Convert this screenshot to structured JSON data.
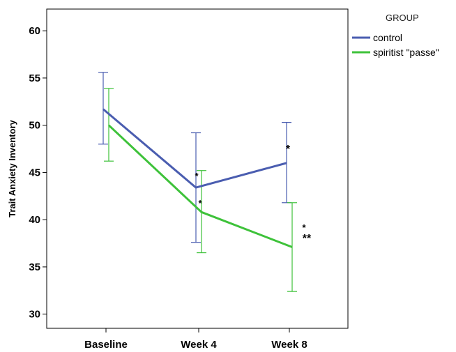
{
  "chart_data": {
    "type": "line",
    "title": "",
    "ylabel": "Trait Anxiety Inventory",
    "xlabel": "",
    "categories": [
      "Baseline",
      "Week 4",
      "Week 8"
    ],
    "ylim": [
      28.5,
      62.3
    ],
    "yticks": [
      30,
      35,
      40,
      45,
      50,
      55,
      60
    ],
    "grid": false,
    "legend": {
      "title": "GROUP",
      "placement": "outside-top-right"
    },
    "series": [
      {
        "name": "control",
        "color": "#4a5db0",
        "values": [
          51.7,
          43.4,
          46.0
        ],
        "error_low": [
          48.0,
          37.6,
          41.8
        ],
        "error_high": [
          55.6,
          49.2,
          50.3
        ]
      },
      {
        "name": "spiritist \"passe\"",
        "color": "#3ec23a",
        "values": [
          50.0,
          40.8,
          37.1
        ],
        "error_low": [
          46.2,
          36.5,
          32.4
        ],
        "error_high": [
          53.9,
          45.2,
          41.8
        ]
      }
    ],
    "annotations": [
      "*",
      "*",
      "*",
      "*",
      "**"
    ]
  }
}
